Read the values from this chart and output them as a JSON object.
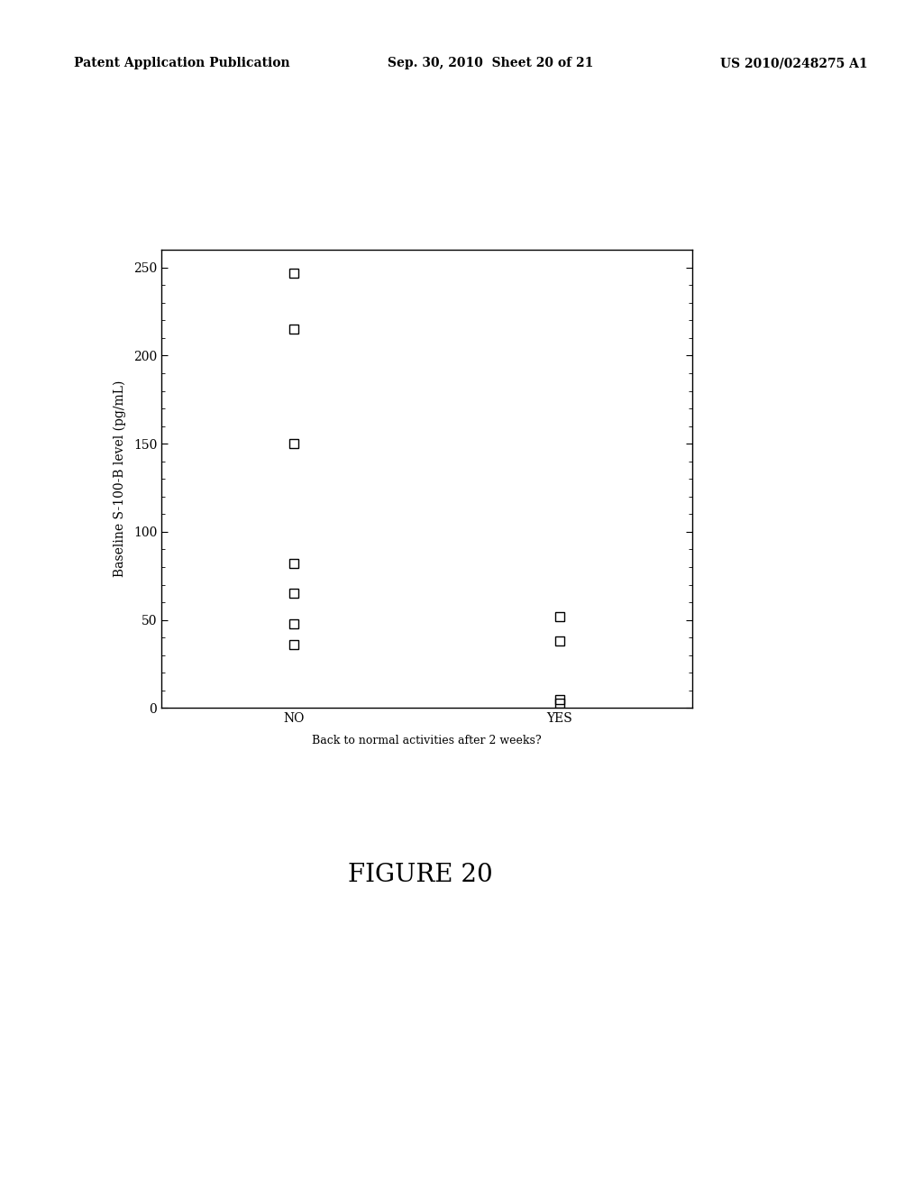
{
  "no_values": [
    247,
    215,
    150,
    82,
    65,
    48,
    36
  ],
  "yes_values": [
    52,
    38,
    5,
    3
  ],
  "x_categories": [
    "NO",
    "YES"
  ],
  "x_positions": {
    "NO": 1,
    "YES": 2
  },
  "ylabel": "Baseline S-100-B level (pg/mL)",
  "xlabel": "Back to normal activities after 2 weeks?",
  "ylim": [
    0,
    260
  ],
  "yticks": [
    0,
    50,
    100,
    150,
    200,
    250
  ],
  "figure_title": "FIGURE 20",
  "marker_size": 7,
  "background_color": "white",
  "header_left": "Patent Application Publication",
  "header_center": "Sep. 30, 2010  Sheet 20 of 21",
  "header_right": "US 2010/0248275 A1"
}
